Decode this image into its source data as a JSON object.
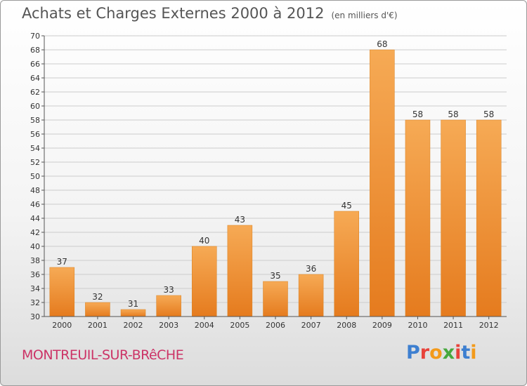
{
  "title": "Achats et Charges Externes 2000 à 2012",
  "title_unit": "(en milliers d'€)",
  "commune": "MONTREUIL-SUR-BRêCHE",
  "logo": {
    "text": "Proxiti",
    "letter_colors": [
      "#3d7fd0",
      "#e8423a",
      "#f39a1a",
      "#46a83e",
      "#e8423a",
      "#3d7fd0",
      "#f39a1a"
    ]
  },
  "colors": {
    "bar_light": "#f6aa55",
    "bar_dark": "#e57b1e",
    "axis": "#555555",
    "grid": "#cccccc",
    "label": "#333333"
  },
  "chart_data": {
    "type": "bar",
    "categories": [
      "2000",
      "2001",
      "2002",
      "2003",
      "2004",
      "2005",
      "2006",
      "2007",
      "2008",
      "2009",
      "2010",
      "2011",
      "2012"
    ],
    "values": [
      37,
      32,
      31,
      33,
      40,
      43,
      35,
      36,
      45,
      68,
      58,
      58,
      58
    ],
    "ylim": [
      30,
      70
    ],
    "yticks": [
      30,
      32,
      34,
      36,
      38,
      40,
      42,
      44,
      46,
      48,
      50,
      52,
      54,
      56,
      58,
      60,
      62,
      64,
      66,
      68,
      70
    ],
    "grid": "horizontal"
  }
}
